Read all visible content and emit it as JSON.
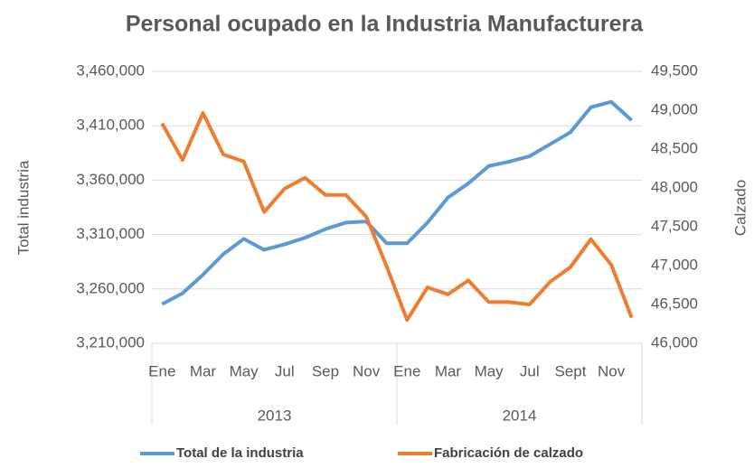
{
  "chart_data": {
    "type": "line",
    "title": "Personal ocupado en la Industria Manufacturera",
    "y_label": "Total industria",
    "y2_label": "Calzado",
    "categories": [
      "Ene",
      null,
      "Mar",
      null,
      "May",
      null,
      "Jul",
      null,
      "Sep",
      null,
      "Nov",
      null,
      "Ene",
      null,
      "Mar",
      null,
      "May",
      null,
      "Jul",
      null,
      "Sept",
      null,
      "Nov",
      null
    ],
    "category_groups": [
      "2013",
      "2014"
    ],
    "series": [
      {
        "name": "Total de la industria",
        "color": "#5b9bd5",
        "axis": "y",
        "values": [
          3246000,
          3256000,
          3273000,
          3292000,
          3306000,
          3296000,
          3301000,
          3307000,
          3315000,
          3321000,
          3322000,
          3302000,
          3302000,
          3321000,
          3344000,
          3357000,
          3373000,
          3377000,
          3382000,
          3393000,
          3404000,
          3427000,
          3432000,
          3415000
        ]
      },
      {
        "name": "Fabricación de calzado",
        "color": "#ed7d31",
        "axis": "y2",
        "values": [
          48830,
          48360,
          48965,
          48430,
          48340,
          47690,
          47990,
          48130,
          47910,
          47910,
          47630,
          46990,
          46300,
          46720,
          46630,
          46810,
          46530,
          46530,
          46500,
          46790,
          46980,
          47340,
          47010,
          46330
        ]
      }
    ],
    "ylim": [
      3210000,
      3460000
    ],
    "yticks": [
      {
        "value": 3210000,
        "label": "3,210,000"
      },
      {
        "value": 3260000,
        "label": "3,260,000"
      },
      {
        "value": 3310000,
        "label": "3,310,000"
      },
      {
        "value": 3360000,
        "label": "3,360,000"
      },
      {
        "value": 3410000,
        "label": "3,410,000"
      },
      {
        "value": 3460000,
        "label": "3,460,000"
      }
    ],
    "y2lim": [
      46000,
      49500
    ],
    "y2ticks": [
      {
        "value": 46000,
        "label": "46,000"
      },
      {
        "value": 46500,
        "label": "46,500"
      },
      {
        "value": 47000,
        "label": "47,000"
      },
      {
        "value": 47500,
        "label": "47,500"
      },
      {
        "value": 48000,
        "label": "48,000"
      },
      {
        "value": 48500,
        "label": "48,500"
      },
      {
        "value": 49000,
        "label": "49,000"
      },
      {
        "value": 49500,
        "label": "49,500"
      }
    ],
    "grid": true,
    "legend": "bottom"
  }
}
